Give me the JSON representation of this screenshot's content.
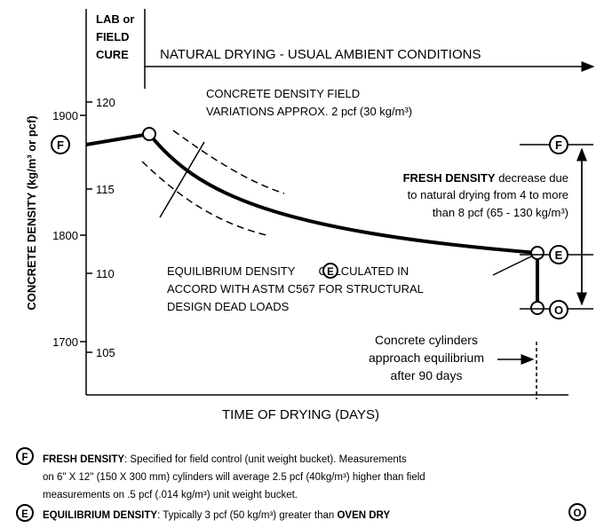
{
  "header": {
    "lab_cure": [
      "LAB or",
      "FIELD",
      "CURE"
    ],
    "natural_drying": "NATURAL DRYING - USUAL AMBIENT CONDITIONS"
  },
  "axes": {
    "y_label": "CONCRETE DENSITY (kg/m³ or pcf)",
    "x_label": "TIME OF DRYING (DAYS)",
    "kg_ticks": [
      1900,
      1800,
      1700
    ],
    "pcf_ticks": [
      120,
      115,
      110,
      105
    ]
  },
  "annotations": {
    "variation": [
      "CONCRETE DENSITY FIELD",
      "VARIATIONS APPROX. 2 pcf (30 kg/m³)"
    ],
    "fresh_decrease": {
      "bold": "FRESH DENSITY",
      "rest": " decrease due",
      "lines": [
        "to natural drying from 4 to more",
        "than 8 pcf (65 - 130 kg/m³)"
      ]
    },
    "equilibrium": {
      "line1_a": "EQUILIBRIUM DENSITY",
      "line1_b": "CALCULATED IN",
      "lines": [
        "ACCORD WITH ASTM C567 FOR STRUCTURAL",
        "DESIGN DEAD LOADS"
      ]
    },
    "cylinders": [
      "Concrete cylinders",
      "approach equilibrium",
      "after 90 days"
    ]
  },
  "markers": {
    "fresh": "F",
    "equilibrium": "E",
    "oven": "O"
  },
  "legend": {
    "fresh": {
      "bold": "FRESH DENSITY",
      "rest": ": Specified for field control (unit weight bucket).  Measurements",
      "lines": [
        "on 6\" X 12\" (150 X 300 mm) cylinders will average 2.5 pcf (40kg/m³) higher than field",
        "measurements on .5 pcf (.014 kg/m³) unit weight bucket."
      ]
    },
    "equilibrium": {
      "bold": "EQUILIBRIUM DENSITY",
      "rest": ": Typically 3 pcf (50 kg/m³) greater than ",
      "bold2": "OVEN DRY"
    }
  }
}
